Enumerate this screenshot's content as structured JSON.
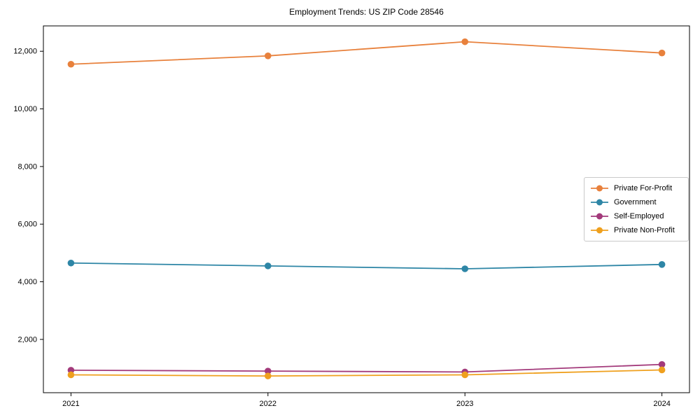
{
  "chart_data": {
    "type": "line",
    "title": "Employment Trends: US ZIP Code 28546",
    "categories": [
      "2021",
      "2022",
      "2023",
      "2024"
    ],
    "series": [
      {
        "name": "Private For-Profit",
        "color": "#E8813C",
        "values": [
          11550,
          11840,
          12330,
          11940
        ]
      },
      {
        "name": "Government",
        "color": "#2E86A6",
        "values": [
          4650,
          4550,
          4450,
          4600
        ]
      },
      {
        "name": "Self-Employed",
        "color": "#A33A7B",
        "values": [
          930,
          900,
          870,
          1130
        ]
      },
      {
        "name": "Private Non-Profit",
        "color": "#EFA01E",
        "values": [
          770,
          730,
          770,
          940
        ]
      }
    ],
    "xlabel": "",
    "ylabel": "",
    "xlim": [
      2020.86,
      2024.14
    ],
    "ylim": [
      150,
      12880
    ],
    "yticks": {
      "values": [
        2000,
        4000,
        6000,
        8000,
        10000,
        12000
      ],
      "labels": [
        "2,000",
        "4,000",
        "6,000",
        "8,000",
        "10,000",
        "12,000"
      ]
    },
    "grid": false,
    "legend_position": "center right",
    "axis_color": "#000000"
  }
}
